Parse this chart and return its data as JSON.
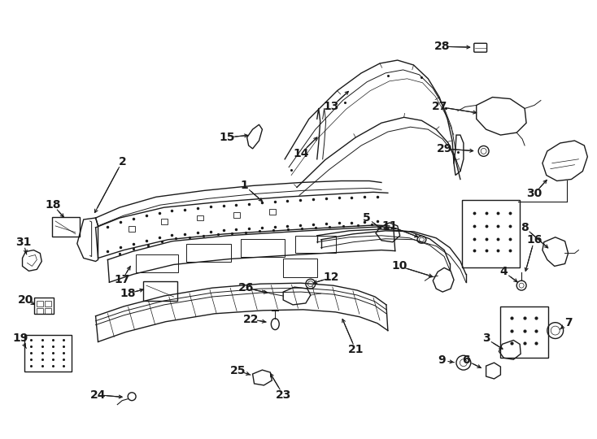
{
  "bg_color": "#ffffff",
  "line_color": "#1a1a1a",
  "fig_width": 7.34,
  "fig_height": 5.4,
  "dpi": 100,
  "label_fontsize": 10,
  "label_fontsize_sm": 9
}
